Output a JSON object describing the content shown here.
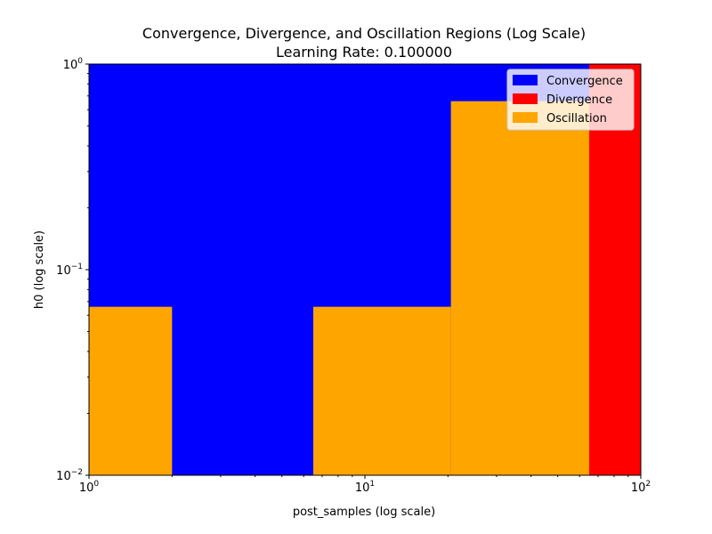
{
  "chart_data": {
    "type": "heatmap",
    "title": "Convergence, Divergence, and Oscillation Regions (Log Scale)",
    "subtitle": "Learning Rate: 0.100000",
    "xlabel": "post_samples (log scale)",
    "ylabel": "h0 (log scale)",
    "xscale": "log",
    "yscale": "log",
    "xlim": [
      1,
      100
    ],
    "ylim": [
      0.01,
      1
    ],
    "x_ticks": [
      {
        "base": "10",
        "exp": "0"
      },
      {
        "base": "10",
        "exp": "1"
      },
      {
        "base": "10",
        "exp": "2"
      }
    ],
    "y_ticks": [
      {
        "base": "10",
        "exp": "−2"
      },
      {
        "base": "10",
        "exp": "−1"
      },
      {
        "base": "10",
        "exp": "0"
      }
    ],
    "legend": {
      "placement": "top-right",
      "entries": [
        {
          "label": "Convergence",
          "color": "#0000ff"
        },
        {
          "label": "Divergence",
          "color": "#ff0000"
        },
        {
          "label": "Oscillation",
          "color": "#ffa500"
        }
      ]
    },
    "background_region": "Convergence",
    "regions": [
      {
        "region": "Oscillation",
        "x": [
          1,
          2
        ],
        "y": [
          0.01,
          0.066
        ]
      },
      {
        "region": "Oscillation",
        "x": [
          6.5,
          20.5
        ],
        "y": [
          0.01,
          0.066
        ]
      },
      {
        "region": "Oscillation",
        "x": [
          20.5,
          65
        ],
        "y": [
          0.01,
          0.66
        ]
      },
      {
        "region": "Divergence",
        "x": [
          65,
          100
        ],
        "y": [
          0.01,
          1
        ]
      }
    ]
  }
}
